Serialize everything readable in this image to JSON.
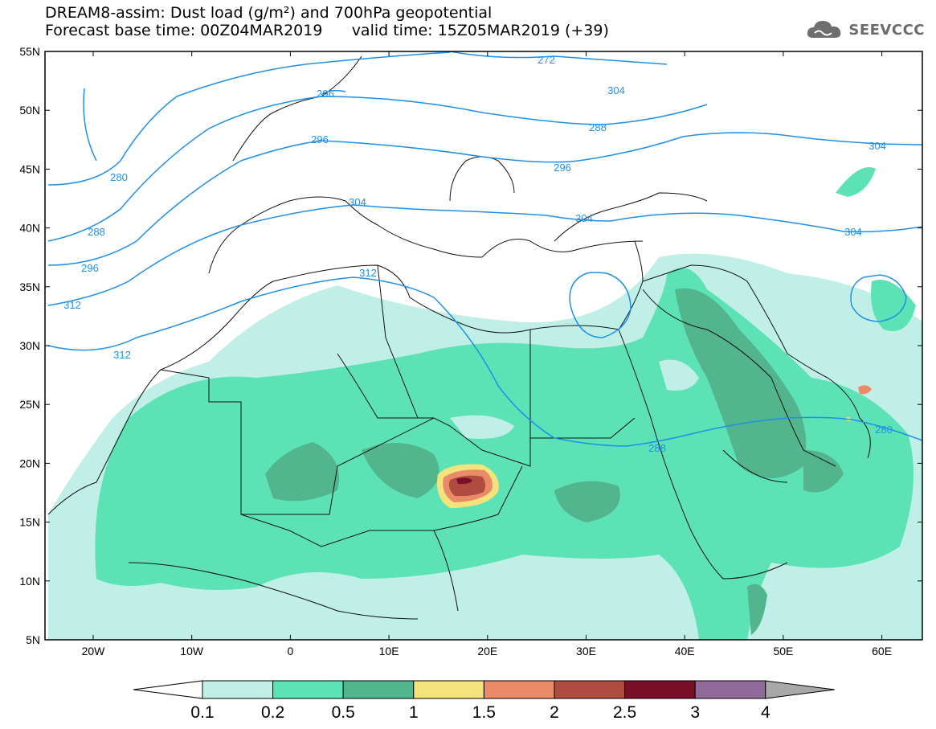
{
  "header": {
    "title_line1": "DREAM8-assim: Dust load (g/m²) and 700hPa geopotential",
    "title_line2": "Forecast base time: 00Z04MAR2019      valid time: 15Z05MAR2019 (+39)"
  },
  "logo": {
    "text": "SEEVCCC",
    "icon": "cloud-logo-icon"
  },
  "map": {
    "lon_ticks": [
      "20W",
      "10W",
      "0",
      "10E",
      "20E",
      "30E",
      "40E",
      "50E",
      "60E"
    ],
    "lat_ticks": [
      "55N",
      "50N",
      "45N",
      "40N",
      "35N",
      "30N",
      "25N",
      "20N",
      "15N",
      "10N",
      "5N"
    ],
    "contour_labels": [
      "272",
      "280",
      "288",
      "288",
      "296",
      "296",
      "296",
      "304",
      "304",
      "304",
      "304",
      "312",
      "312",
      "312",
      "288",
      "280",
      "296",
      "304"
    ],
    "geopotential_color": "#1f8fe8"
  },
  "colorbar": {
    "labels": [
      "0.1",
      "0.2",
      "0.5",
      "1",
      "1.5",
      "2",
      "2.5",
      "3",
      "4"
    ],
    "colors": [
      "#ffffff",
      "#bfefe7",
      "#5de2b6",
      "#53b58e",
      "#f3e37a",
      "#e98b68",
      "#ad4c3f",
      "#7a0f2a",
      "#8f6a99",
      "#a8a8a8"
    ]
  }
}
